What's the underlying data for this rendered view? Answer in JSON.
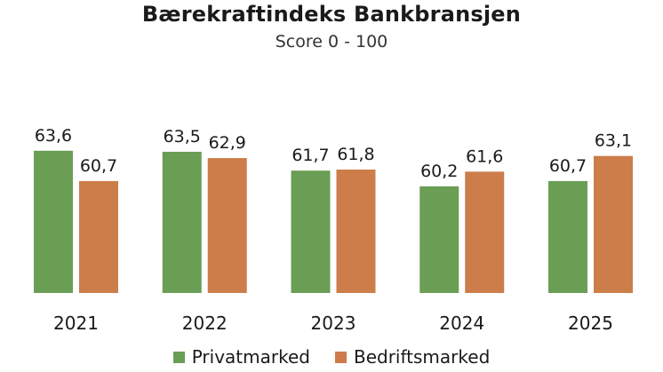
{
  "colors": {
    "privat": "#6a9e55",
    "bedrift": "#cc7d4a"
  },
  "chart_data": {
    "type": "bar",
    "title": "Bærekraftindeks Bankbransjen",
    "subtitle": "Score 0 - 100",
    "categories": [
      "2021",
      "2022",
      "2023",
      "2024",
      "2025"
    ],
    "series": [
      {
        "name": "Privatmarked",
        "values": [
          63.6,
          63.5,
          61.7,
          60.2,
          60.7
        ],
        "labels": [
          "63,6",
          "63,5",
          "61,7",
          "60,2",
          "60,7"
        ]
      },
      {
        "name": "Bedriftsmarked",
        "values": [
          60.7,
          62.9,
          61.8,
          61.6,
          63.1
        ],
        "labels": [
          "60,7",
          "62,9",
          "61,8",
          "61,6",
          "63,1"
        ]
      }
    ],
    "ylim": [
      50,
      65
    ],
    "grid": false,
    "legend_position": "bottom"
  }
}
